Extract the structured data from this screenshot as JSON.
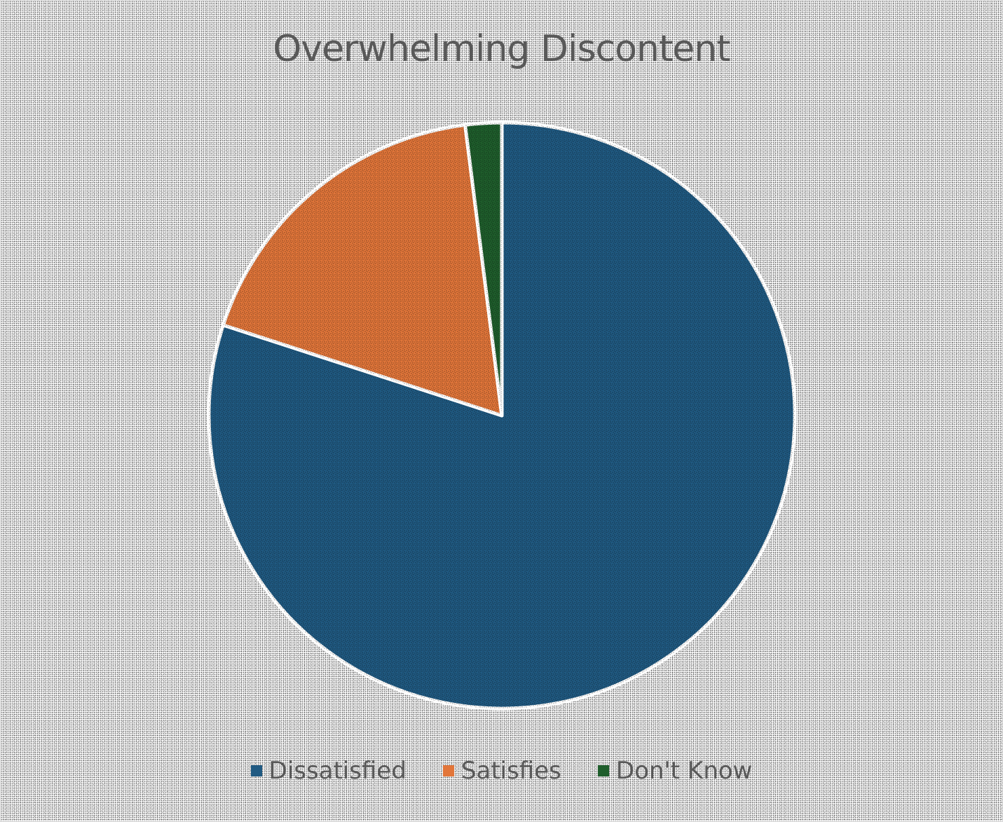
{
  "chart_data": {
    "type": "pie",
    "title": "Overwhelming Discontent",
    "categories": [
      "Dissatisfied",
      "Satisfies",
      "Don't Know"
    ],
    "values": [
      80,
      18,
      2
    ],
    "colors": [
      "#205a82",
      "#e2763a",
      "#1f5e2c"
    ],
    "legend_position": "bottom",
    "start_angle": "12 o'clock, clockwise"
  }
}
